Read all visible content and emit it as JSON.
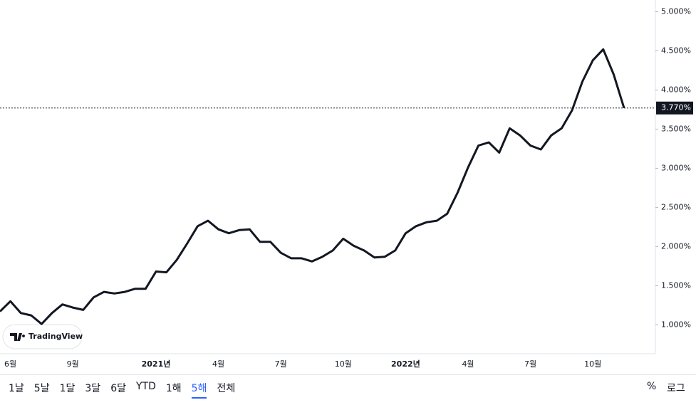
{
  "chart_data": {
    "type": "line",
    "categories": [
      null,
      "6월",
      null,
      null,
      null,
      null,
      null,
      "9월",
      null,
      null,
      null,
      null,
      null,
      null,
      null,
      "2021년",
      null,
      null,
      null,
      null,
      null,
      "4월",
      null,
      null,
      null,
      null,
      null,
      "7월",
      null,
      null,
      null,
      null,
      null,
      "10월",
      null,
      null,
      null,
      null,
      null,
      "2022년",
      null,
      null,
      null,
      null,
      null,
      "4월",
      null,
      null,
      null,
      null,
      null,
      "7월",
      null,
      null,
      null,
      null,
      null,
      "10월",
      null,
      null,
      null
    ],
    "values": [
      1.17,
      1.3,
      1.15,
      1.12,
      1.01,
      1.15,
      1.26,
      1.22,
      1.19,
      1.35,
      1.42,
      1.4,
      1.42,
      1.46,
      1.46,
      1.68,
      1.67,
      1.83,
      2.04,
      2.26,
      2.33,
      2.22,
      2.17,
      2.21,
      2.22,
      2.06,
      2.06,
      1.92,
      1.85,
      1.85,
      1.81,
      1.87,
      1.95,
      2.1,
      2.01,
      1.95,
      1.86,
      1.87,
      1.95,
      2.17,
      2.26,
      2.31,
      2.33,
      2.42,
      2.69,
      3.01,
      3.29,
      3.33,
      3.2,
      3.51,
      3.42,
      3.29,
      3.24,
      3.42,
      3.51,
      3.74,
      4.11,
      4.38,
      4.52,
      4.2,
      3.77
    ],
    "color": "#131722",
    "ylim": [
      0.63,
      5.15
    ],
    "yticks": [
      {
        "value": 1.0,
        "label": "1.000%"
      },
      {
        "value": 1.5,
        "label": "1.500%"
      },
      {
        "value": 2.0,
        "label": "2.000%"
      },
      {
        "value": 2.5,
        "label": "2.500%"
      },
      {
        "value": 3.0,
        "label": "3.000%"
      },
      {
        "value": 3.5,
        "label": "3.500%"
      },
      {
        "value": 4.0,
        "label": "4.000%"
      },
      {
        "value": 4.5,
        "label": "4.500%"
      },
      {
        "value": 5.0,
        "label": "5.000%"
      }
    ],
    "last_price": {
      "value": 3.77,
      "label": "3.770%"
    },
    "watermark": "TradingView"
  },
  "toolbar": {
    "ranges": [
      "1날",
      "5날",
      "1달",
      "3달",
      "6달",
      "YTD",
      "1해",
      "5해",
      "전체"
    ],
    "active": 7,
    "percent": "%",
    "log": "로그"
  }
}
